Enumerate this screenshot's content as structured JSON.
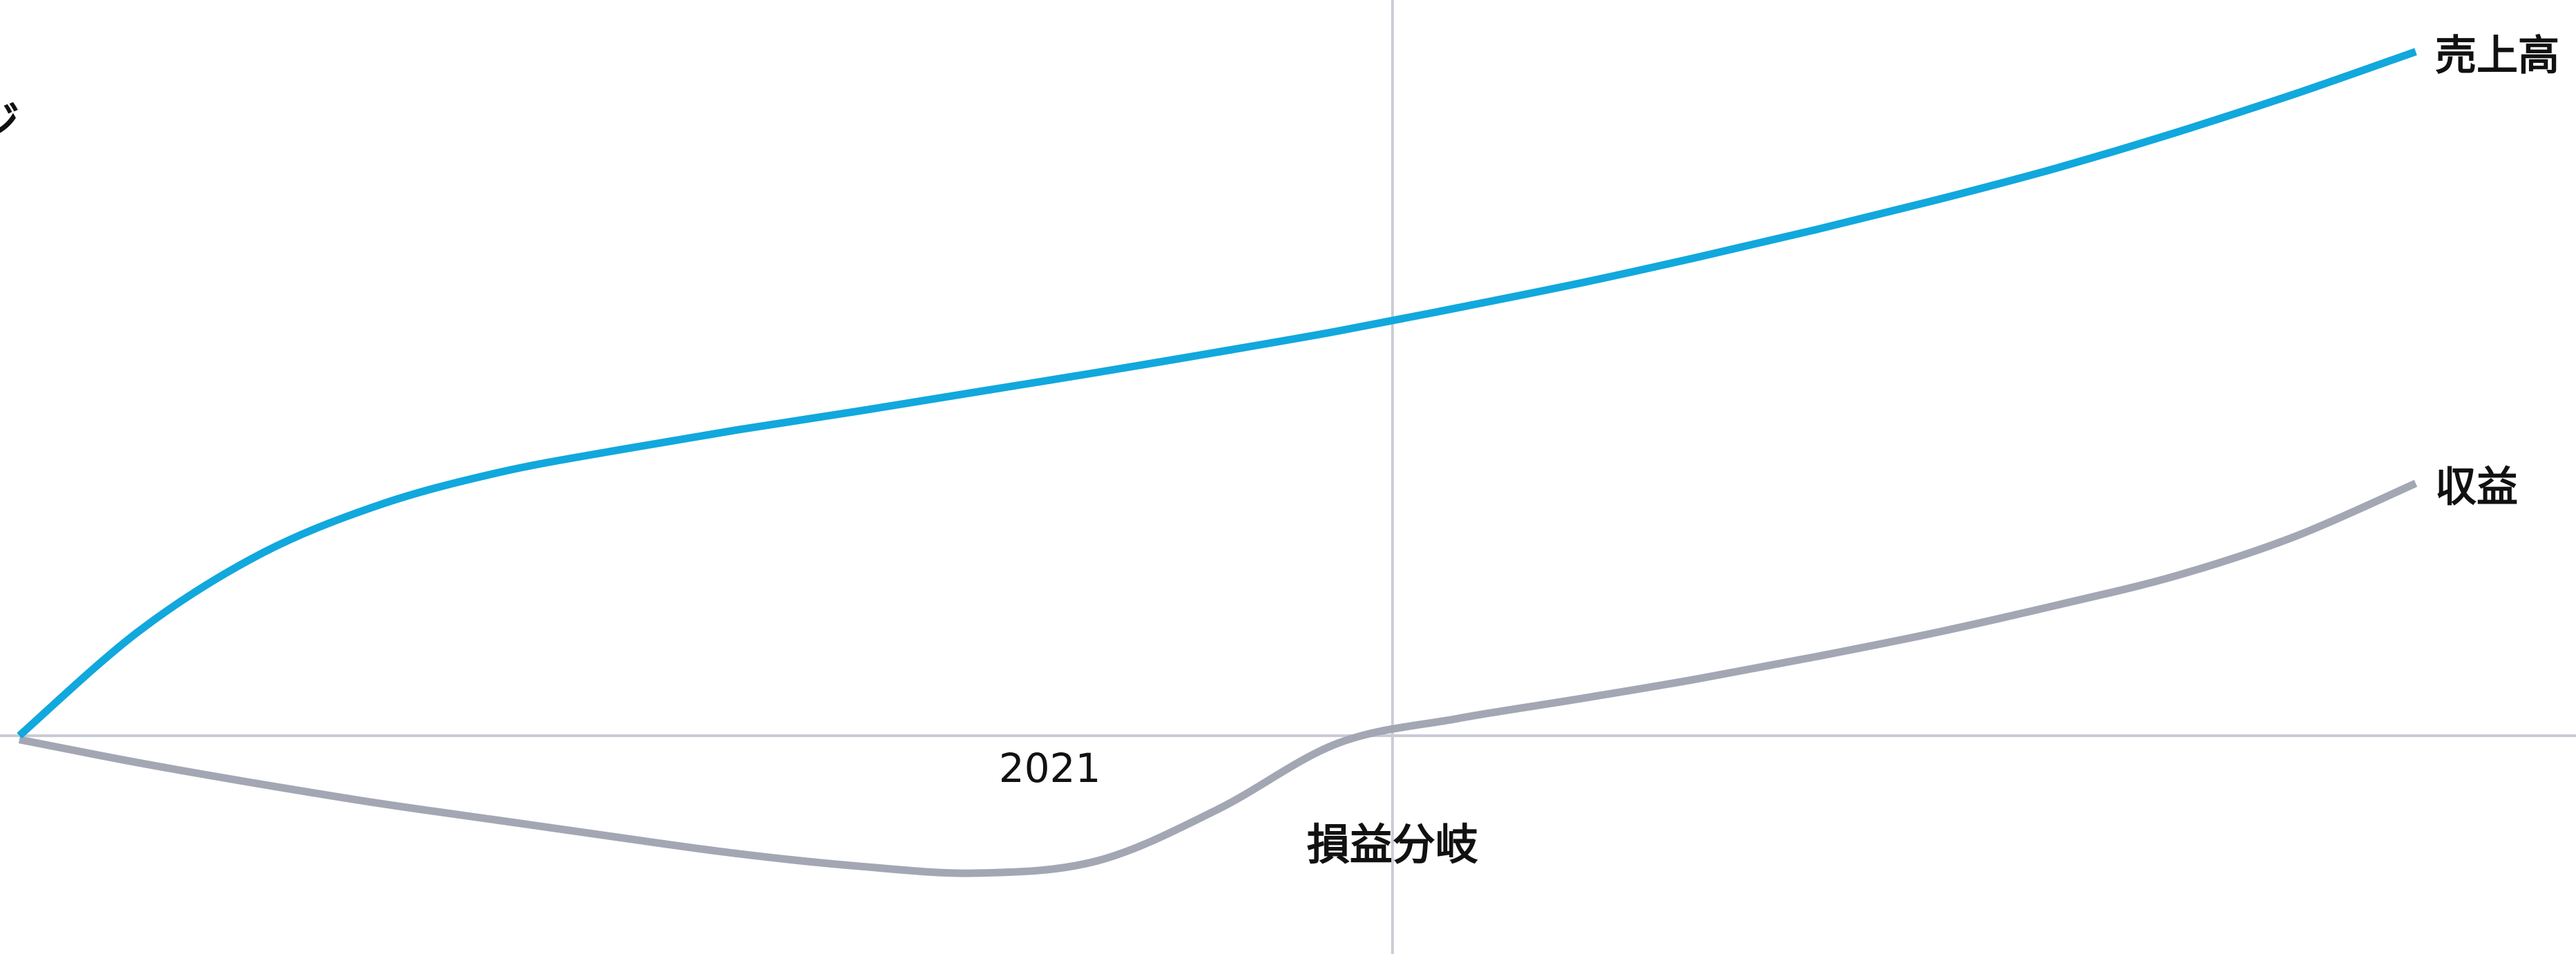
{
  "chart_data": {
    "type": "line",
    "title": "",
    "xlabel": "",
    "ylabel": "",
    "legend": "none",
    "grid": false,
    "x_tick_label": "2021",
    "partial_left_label": "ジ",
    "annotation": "損益分岐",
    "colors": {
      "sales": "#11a8dd",
      "profit": "#a3a7b3",
      "axis": "#c9cbd6"
    },
    "series": [
      {
        "name": "売上高",
        "color_key": "sales",
        "x": [
          0,
          0.05,
          0.1,
          0.15,
          0.2,
          0.25,
          0.3,
          0.35,
          0.4,
          0.45,
          0.5,
          0.55,
          0.6,
          0.65,
          0.7,
          0.75,
          0.8,
          0.85,
          0.9,
          0.95,
          1.0
        ],
        "values": [
          0.0,
          0.135,
          0.233,
          0.297,
          0.339,
          0.368,
          0.394,
          0.418,
          0.443,
          0.468,
          0.494,
          0.521,
          0.551,
          0.582,
          0.616,
          0.652,
          0.69,
          0.731,
          0.777,
          0.827,
          0.881
        ]
      },
      {
        "name": "収益",
        "color_key": "profit",
        "x": [
          0,
          0.05,
          0.1,
          0.15,
          0.2,
          0.25,
          0.3,
          0.35,
          0.4,
          0.45,
          0.5,
          0.55,
          0.6,
          0.65,
          0.7,
          0.75,
          0.8,
          0.85,
          0.9,
          0.95,
          1.0
        ],
        "values": [
          -0.005,
          -0.035,
          -0.062,
          -0.087,
          -0.109,
          -0.131,
          -0.152,
          -0.168,
          -0.177,
          -0.161,
          -0.095,
          -0.01,
          0.022,
          0.047,
          0.073,
          0.102,
          0.133,
          0.168,
          0.206,
          0.257,
          0.325
        ]
      }
    ],
    "xlim": [
      0,
      1
    ],
    "ylim": [
      -0.28,
      0.95
    ],
    "breakeven_x": 0.573,
    "tick_x": 0.43
  }
}
